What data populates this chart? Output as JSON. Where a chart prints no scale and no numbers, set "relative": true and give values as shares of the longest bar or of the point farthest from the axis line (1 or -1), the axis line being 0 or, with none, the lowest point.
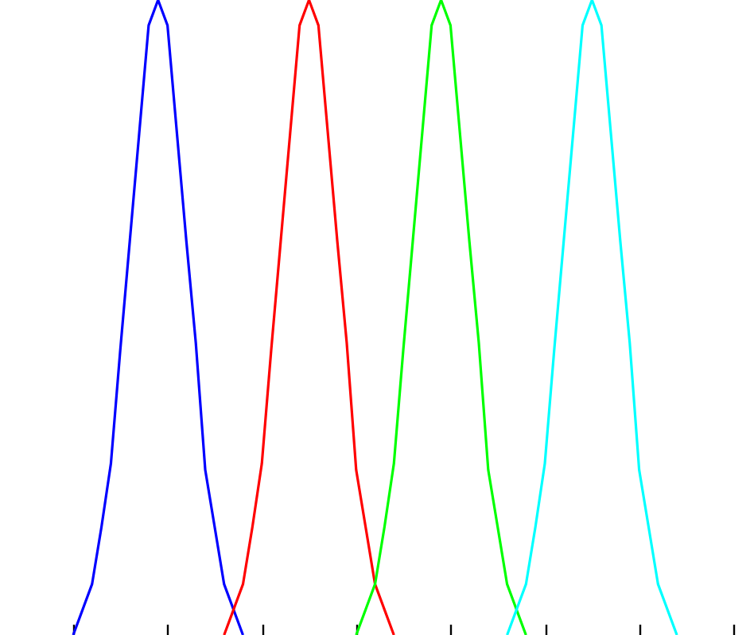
{
  "chart_data": {
    "type": "line",
    "relative": true,
    "line_style": "solid",
    "categories": [
      null,
      null,
      null,
      null,
      null,
      null,
      null,
      null,
      null,
      null,
      null,
      null,
      null,
      null,
      null,
      null,
      null,
      null,
      null,
      null,
      null,
      null,
      null,
      null,
      null,
      null,
      null,
      null,
      null,
      null,
      null,
      null,
      null,
      null,
      null,
      null,
      null,
      null,
      null,
      null,
      null,
      null,
      null,
      null,
      null,
      null,
      null,
      null,
      null,
      null,
      null,
      null,
      null,
      null,
      null,
      null,
      null,
      null,
      null,
      null,
      null,
      null,
      null,
      null,
      null,
      null,
      null,
      null,
      null,
      null,
      null,
      null,
      null,
      null,
      null,
      null,
      null,
      null,
      null,
      null
    ],
    "series": [
      {
        "color": "#0000ff",
        "values": [
          null,
          null,
          null,
          null,
          null,
          null,
          0,
          0.04,
          0.08,
          0.17,
          0.27,
          0.45,
          0.62,
          0.79,
          0.96,
          1,
          0.96,
          0.79,
          0.62,
          0.46,
          0.26,
          0.17,
          0.08,
          0.04,
          0,
          null,
          null,
          null,
          null,
          null,
          null,
          null,
          null,
          null,
          null,
          null,
          null,
          null,
          null,
          null,
          null,
          null,
          null,
          null,
          null,
          null,
          null,
          null,
          null,
          null,
          null,
          null,
          null,
          null,
          null,
          null,
          null,
          null,
          null,
          null,
          null,
          null,
          null,
          null,
          null,
          null,
          null,
          null,
          null,
          null,
          null,
          null,
          null,
          null,
          null,
          null,
          null,
          null,
          null,
          null
        ]
      },
      {
        "color": "#ff0000",
        "values": [
          null,
          null,
          null,
          null,
          null,
          null,
          null,
          null,
          null,
          null,
          null,
          null,
          null,
          null,
          null,
          null,
          null,
          null,
          null,
          null,
          null,
          null,
          0,
          0.04,
          0.08,
          0.17,
          0.27,
          0.45,
          0.62,
          0.79,
          0.96,
          1,
          0.96,
          0.79,
          0.62,
          0.46,
          0.26,
          0.17,
          0.08,
          0.04,
          0,
          null,
          null,
          null,
          null,
          null,
          null,
          null,
          null,
          null,
          null,
          null,
          null,
          null,
          null,
          null,
          null,
          null,
          null,
          null,
          null,
          null,
          null,
          null,
          null,
          null,
          null,
          null,
          null,
          null,
          null,
          null,
          null,
          null,
          null,
          null,
          null,
          null,
          null,
          null
        ]
      },
      {
        "color": "#00ff00",
        "values": [
          null,
          null,
          null,
          null,
          null,
          null,
          null,
          null,
          null,
          null,
          null,
          null,
          null,
          null,
          null,
          null,
          null,
          null,
          null,
          null,
          null,
          null,
          null,
          null,
          null,
          null,
          null,
          null,
          null,
          null,
          null,
          null,
          null,
          null,
          null,
          null,
          0,
          0.04,
          0.08,
          0.17,
          0.27,
          0.45,
          0.62,
          0.79,
          0.96,
          1,
          0.96,
          0.79,
          0.62,
          0.46,
          0.26,
          0.17,
          0.08,
          0.04,
          0,
          null,
          null,
          null,
          null,
          null,
          null,
          null,
          null,
          null,
          null,
          null,
          null,
          null,
          null,
          null,
          null,
          null,
          null,
          null,
          null,
          null,
          null,
          null,
          null,
          null
        ]
      },
      {
        "color": "#00ffff",
        "values": [
          null,
          null,
          null,
          null,
          null,
          null,
          null,
          null,
          null,
          null,
          null,
          null,
          null,
          null,
          null,
          null,
          null,
          null,
          null,
          null,
          null,
          null,
          null,
          null,
          null,
          null,
          null,
          null,
          null,
          null,
          null,
          null,
          null,
          null,
          null,
          null,
          null,
          null,
          null,
          null,
          null,
          null,
          null,
          null,
          null,
          null,
          null,
          null,
          null,
          null,
          null,
          null,
          0,
          0.04,
          0.08,
          0.17,
          0.27,
          0.45,
          0.62,
          0.79,
          0.96,
          1,
          0.96,
          0.79,
          0.62,
          0.46,
          0.26,
          0.17,
          0.08,
          0.04,
          0,
          null,
          null,
          null,
          null,
          null,
          null,
          null,
          null,
          null
        ]
      }
    ]
  }
}
